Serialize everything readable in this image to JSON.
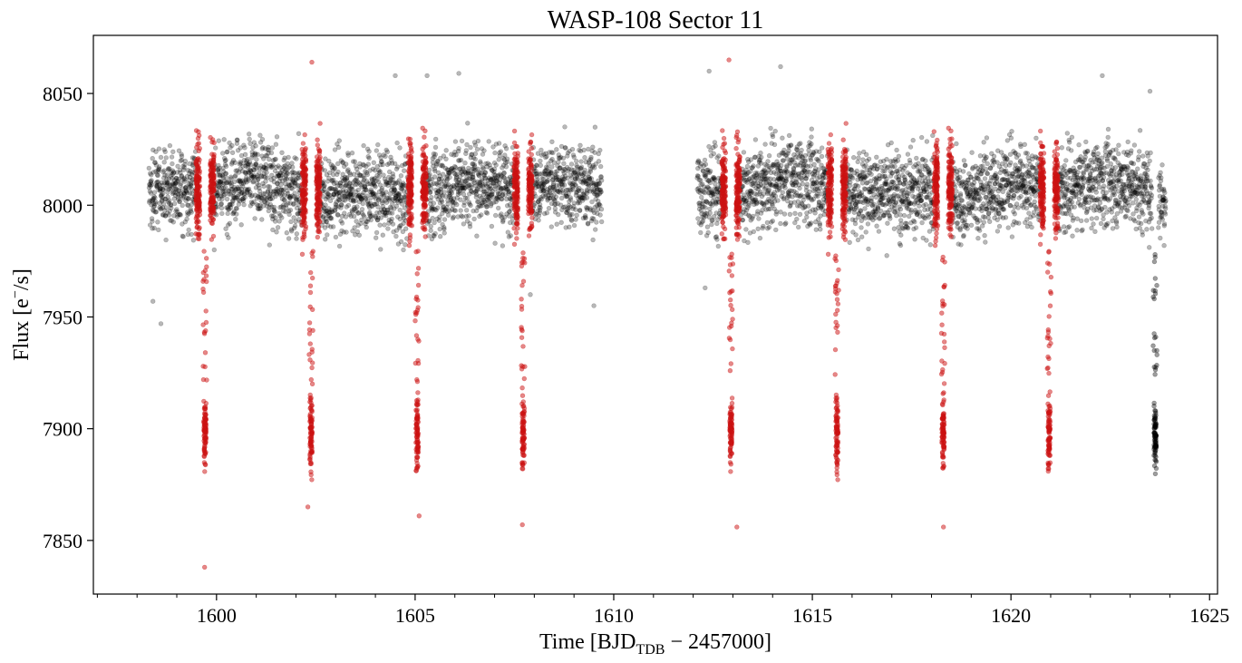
{
  "chart_data": {
    "type": "scatter",
    "title": "WASP-108 Sector 11",
    "xlabel": {
      "prefix": "Time [BJD",
      "subscript": "TDB",
      "suffix": " − 2457000]"
    },
    "ylabel": {
      "prefix": "Flux [e",
      "superscript": "−",
      "suffix": "/s]"
    },
    "xlim": [
      1596.9,
      1625.2
    ],
    "ylim": [
      7826,
      8076
    ],
    "x_major_ticks": [
      1600,
      1605,
      1610,
      1615,
      1620,
      1625
    ],
    "x_minor_step": 1,
    "y_major_ticks": [
      7850,
      7900,
      7950,
      8000,
      8050
    ],
    "grid": false,
    "legend": "none",
    "series": [
      {
        "role": "out-of-transit",
        "color": "#000000",
        "alpha": 0.28,
        "segments": [
          [
            1598.3,
            1609.7
          ],
          [
            1612.1,
            1623.9
          ]
        ],
        "baseline": 8007,
        "scatter_sd": 13,
        "outliers": [
          {
            "x": 1598.6,
            "y": 7947
          },
          {
            "x": 1598.4,
            "y": 7957
          },
          {
            "x": 1612.3,
            "y": 7963
          },
          {
            "x": 1614.2,
            "y": 8062
          },
          {
            "x": 1604.5,
            "y": 8058
          },
          {
            "x": 1605.3,
            "y": 8058
          },
          {
            "x": 1606.1,
            "y": 8059
          },
          {
            "x": 1612.4,
            "y": 8060
          },
          {
            "x": 1622.3,
            "y": 8058
          },
          {
            "x": 1623.5,
            "y": 8051
          },
          {
            "x": 1609.5,
            "y": 7955
          },
          {
            "x": 1607.9,
            "y": 7960
          }
        ]
      },
      {
        "role": "in-transit",
        "color": "#cc1111",
        "alpha": 0.5,
        "transits": [
          1599.71,
          1602.38,
          1605.05,
          1607.72,
          1612.95,
          1615.62,
          1618.29,
          1620.96,
          1623.63
        ],
        "depth_flux": 7898,
        "edge_halfwidth": 0.18,
        "outliers": [
          {
            "x": 1599.7,
            "y": 7838
          },
          {
            "x": 1602.4,
            "y": 8064
          },
          {
            "x": 1612.9,
            "y": 8065
          },
          {
            "x": 1607.7,
            "y": 7857
          },
          {
            "x": 1613.1,
            "y": 7856
          },
          {
            "x": 1618.3,
            "y": 7856
          },
          {
            "x": 1605.1,
            "y": 7861
          },
          {
            "x": 1602.3,
            "y": 7865
          }
        ]
      }
    ],
    "last_transit_color": "#000000"
  }
}
